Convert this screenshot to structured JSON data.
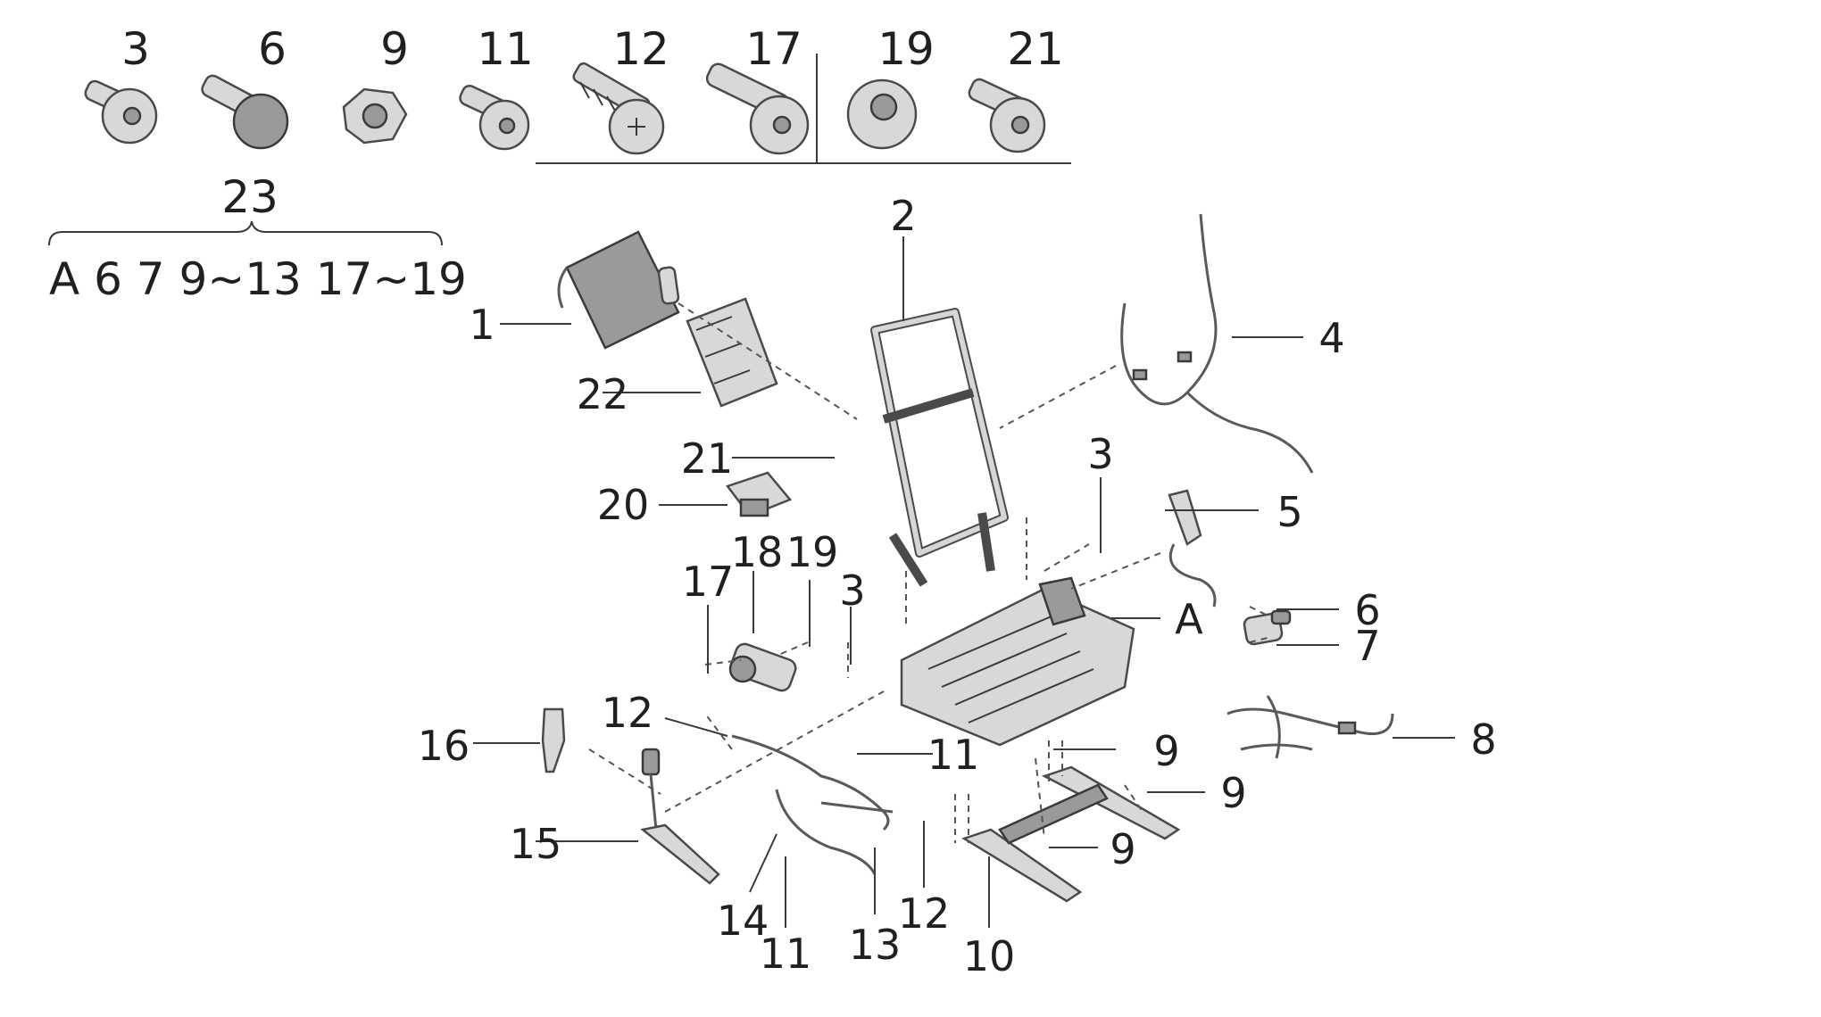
{
  "fasteners": {
    "labels": [
      "3",
      "6",
      "9",
      "11",
      "12",
      "17",
      "19",
      "21"
    ]
  },
  "kit": {
    "number": "23",
    "contents": "A 6 7 9~13 17~19"
  },
  "callouts": {
    "c1": "1",
    "c2": "2",
    "c3a": "3",
    "c3b": "3",
    "c4": "4",
    "c5": "5",
    "c6": "6",
    "c7": "7",
    "c8": "8",
    "c9a": "9",
    "c9b": "9",
    "c9c": "9",
    "c10": "10",
    "c11a": "11",
    "c11b": "11",
    "c12a": "12",
    "c12b": "12",
    "c13": "13",
    "c14": "14",
    "c15": "15",
    "c16": "16",
    "c17": "17",
    "c18": "18",
    "c19": "19",
    "c20": "20",
    "c21": "21",
    "c22": "22",
    "cA": "A"
  }
}
